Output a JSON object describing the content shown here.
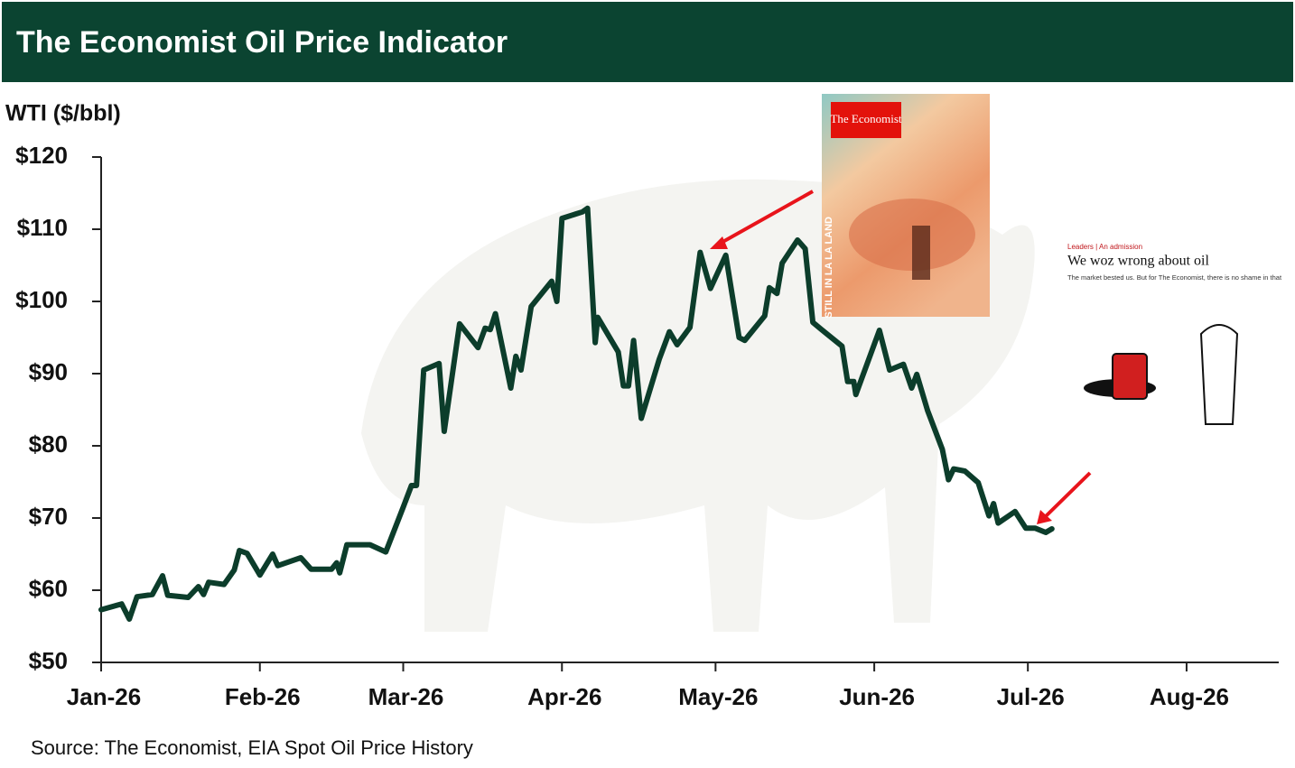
{
  "chart_data": {
    "type": "line",
    "title": "The Economist Oil Price Indicator",
    "y_label": "WTI ($/bbl)",
    "source": "Source: The Economist, EIA Spot Oil Price History",
    "annotations": {
      "cover_masthead": "The Economist",
      "cover_headline": "STILL IN LA LA LAND",
      "article_kicker": "Leaders | An admission",
      "article_title": "We woz wrong about oil",
      "article_subtitle": "The market bested us. But for The Economist, there is no shame in that"
    },
    "xlim": [
      0,
      230
    ],
    "xticks": [
      {
        "value": 0,
        "label": "Jan-26"
      },
      {
        "value": 31,
        "label": "Feb-26"
      },
      {
        "value": 59,
        "label": "Mar-26"
      },
      {
        "value": 90,
        "label": "Apr-26"
      },
      {
        "value": 120,
        "label": "May-26"
      },
      {
        "value": 151,
        "label": "Jun-26"
      },
      {
        "value": 181,
        "label": "Jul-26"
      },
      {
        "value": 212,
        "label": "Aug-26"
      }
    ],
    "ylim": [
      50,
      120
    ],
    "yticks": [
      {
        "value": 50,
        "label": "$50"
      },
      {
        "value": 60,
        "label": "$60"
      },
      {
        "value": 70,
        "label": "$70"
      },
      {
        "value": 80,
        "label": "$80"
      },
      {
        "value": 90,
        "label": "$90"
      },
      {
        "value": 100,
        "label": "$100"
      },
      {
        "value": 110,
        "label": "$110"
      },
      {
        "value": 120,
        "label": "$120"
      }
    ],
    "series": [
      {
        "name": "WTI",
        "color": "#0c3d2b",
        "x": [
          0,
          4,
          5.5,
          7,
          10,
          12,
          13,
          17,
          19,
          20,
          21,
          24,
          26,
          27,
          28.5,
          31,
          33.5,
          34.5,
          39,
          41,
          45,
          46,
          46.6,
          48,
          52.5,
          55.6,
          59,
          60.6,
          61.6,
          63,
          66,
          67,
          70,
          73.6,
          75,
          76,
          77,
          80,
          81,
          82,
          84,
          88,
          89,
          90,
          94,
          95,
          96.5,
          97,
          101,
          102,
          103,
          104,
          105.5,
          109,
          111,
          112.5,
          115,
          117,
          119,
          122,
          124.6,
          125.7,
          129.6,
          130.5,
          132,
          133,
          136,
          137.5,
          139,
          140.7,
          144.7,
          145.8,
          147,
          147.4,
          152,
          154,
          156.7,
          158.3,
          159.3,
          161.4,
          164.3,
          165.5,
          166.5,
          168.7,
          171.3,
          173.4,
          174.3,
          175.2,
          178.5,
          180.6,
          182.4,
          184.5,
          185.7
        ],
        "values": [
          57.3,
          58.1,
          56,
          59.1,
          59.4,
          62,
          59.3,
          59,
          60.5,
          59.4,
          61.1,
          60.8,
          62.8,
          65.5,
          65.1,
          62.1,
          65,
          63.4,
          64.5,
          62.9,
          62.9,
          63.8,
          62.4,
          66.3,
          66.3,
          65.3,
          71.5,
          74.5,
          74.5,
          90.5,
          91.4,
          82,
          96.9,
          93.6,
          96.3,
          96.1,
          98.3,
          88,
          92.4,
          90.5,
          99.3,
          102.8,
          100,
          111.5,
          112.4,
          112.9,
          94.3,
          97.8,
          93,
          88.3,
          88.3,
          94.6,
          83.8,
          92,
          95.8,
          94,
          96.4,
          106.8,
          101.8,
          106.4,
          95,
          94.6,
          98,
          101.9,
          101.1,
          105.3,
          108.5,
          107.3,
          97.1,
          96.1,
          93.8,
          88.9,
          88.9,
          87.1,
          96,
          90.5,
          91.3,
          88,
          89.9,
          84.9,
          79.5,
          75.3,
          76.8,
          76.5,
          74.9,
          70.3,
          72,
          69.3,
          70.9,
          68.6,
          68.6,
          68,
          68.5
        ]
      }
    ]
  }
}
